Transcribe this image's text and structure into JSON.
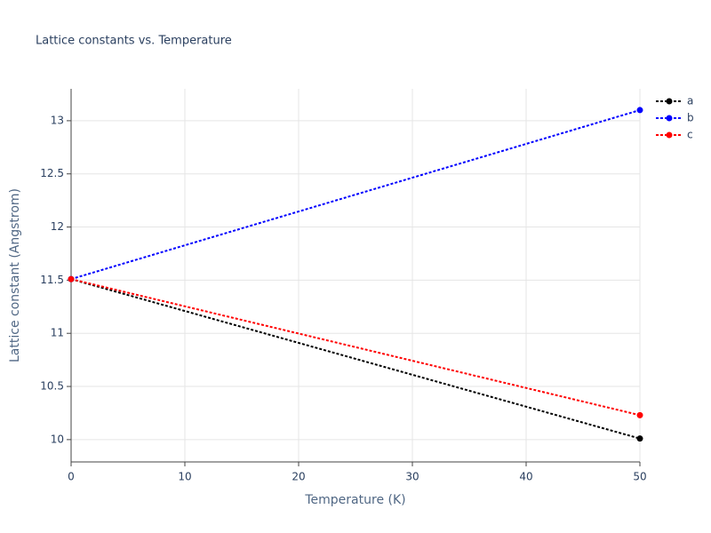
{
  "chart_data": {
    "type": "line",
    "title": "Lattice constants vs. Temperature",
    "x_label": "Temperature (K)",
    "y_label": "Lattice constant (Angstrom)",
    "x": [
      0,
      50
    ],
    "series": [
      {
        "name": "a",
        "color": "#000000",
        "values": [
          11.51,
          10.01
        ]
      },
      {
        "name": "b",
        "color": "#0000ff",
        "values": [
          11.51,
          13.1
        ]
      },
      {
        "name": "c",
        "color": "#ff0000",
        "values": [
          11.51,
          10.23
        ]
      }
    ],
    "xlim": [
      0,
      50
    ],
    "xticks": [
      0,
      10,
      20,
      30,
      40,
      50
    ],
    "ylim": [
      9.79,
      13.3
    ],
    "yticks": [
      10,
      10.5,
      11,
      11.5,
      12,
      12.5,
      13
    ],
    "grid": true,
    "legend": "top-right",
    "line_style": "dotted"
  }
}
